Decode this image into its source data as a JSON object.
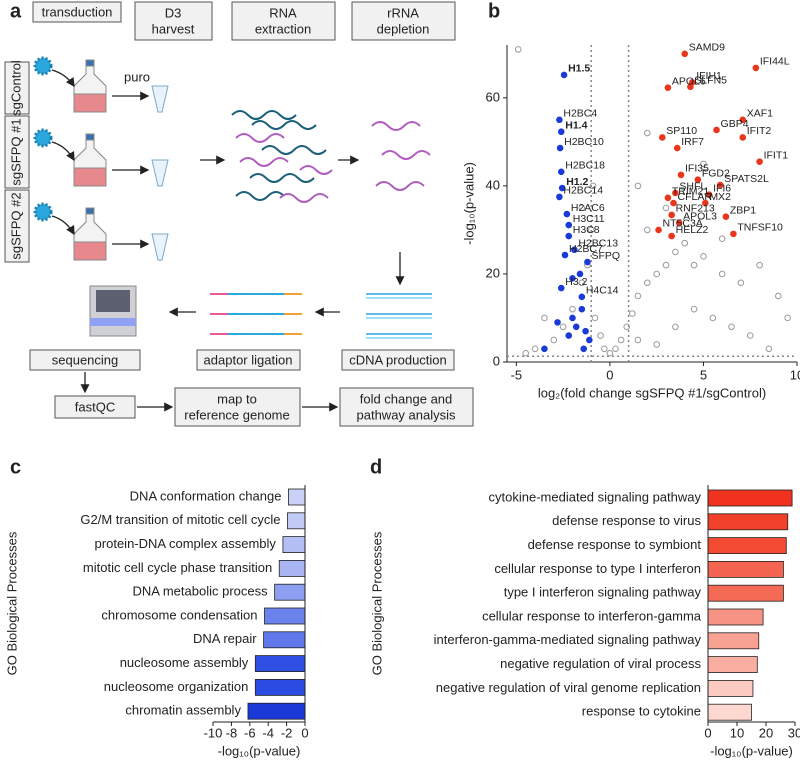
{
  "diagram": {
    "panel_labels": [
      "a",
      "b",
      "c",
      "d"
    ],
    "steps": [
      [
        "transduction"
      ],
      [
        "D3",
        "harvest"
      ],
      [
        "RNA",
        "extraction"
      ],
      [
        "rRNA",
        "depletion"
      ]
    ],
    "conditions": [
      "sgControl",
      "sgSFPQ #1",
      "sgSFPQ #2"
    ],
    "selection": "puro",
    "pipeline": [
      [
        "sequencing"
      ],
      [
        "adaptor ligation"
      ],
      [
        "cDNA production"
      ],
      [
        "fastQC"
      ],
      [
        "map to",
        "reference genome"
      ],
      [
        "fold change and",
        "pathway analysis"
      ]
    ]
  },
  "chart_data": [
    {
      "type": "scatter",
      "x_label": "log₂(fold change sgSFPQ #1/sgControl)",
      "y_label": "-log₁₀(p-value)",
      "xlim": [
        -5.5,
        10
      ],
      "ylim": [
        0,
        72
      ],
      "xticks": [
        -5,
        0,
        5,
        10
      ],
      "yticks": [
        0,
        20,
        40,
        60
      ],
      "thresholds": {
        "x": [
          -1,
          1
        ],
        "y": 1.3
      },
      "groups": [
        {
          "color": "#9a9a9a",
          "filled": false,
          "x": [
            -4.9,
            -3,
            -2.5,
            -2,
            -1.5,
            -1.2,
            -0.8,
            -0.5,
            -0.3,
            0,
            0.3,
            0.6,
            0.9,
            1.2,
            1.5,
            2,
            2.5,
            3,
            3.5,
            4,
            5,
            6,
            7,
            8,
            9,
            9.5,
            1.5,
            2.5,
            3.5,
            4.5,
            5.5,
            6.5,
            7.5,
            -4,
            -3.5,
            -1,
            -1.5,
            -0.9,
            2,
            3,
            4.5,
            6,
            2,
            5,
            1.5,
            -4.5,
            8.5
          ],
          "y": [
            71,
            5,
            8,
            12,
            18,
            22,
            10,
            6,
            3,
            2,
            3,
            5,
            8,
            11,
            15,
            18,
            20,
            22,
            25,
            27,
            24,
            20,
            18,
            22,
            15,
            10,
            5,
            4,
            8,
            12,
            10,
            8,
            6,
            3,
            10,
            30,
            35,
            40,
            30,
            35,
            22,
            28,
            52,
            45,
            40,
            2,
            3
          ]
        },
        {
          "color": "#1a3ad8",
          "filled": true,
          "x": [
            -1.5,
            -2,
            -1.8,
            -2.2,
            -1.3,
            -2.8,
            -1.6,
            -2,
            -1.1,
            -3.5,
            -1.4
          ],
          "y": [
            12,
            10,
            8,
            6,
            7,
            9,
            20,
            19,
            5,
            3,
            3
          ]
        },
        {
          "color": "#1a3ad8",
          "filled": true,
          "label_color": "#1a3ad8",
          "label_bold": true,
          "labels": [
            "H1.5",
            "H1.4",
            "H1.2"
          ],
          "x": [
            -2.45,
            -2.6,
            -2.55
          ],
          "y": [
            65.2,
            52.3,
            39.5
          ]
        },
        {
          "color": "#1a3ad8",
          "filled": true,
          "label_color": "#555555",
          "label_bold": false,
          "labels": [
            "H2BC4",
            "H2BC10",
            "H2BC18",
            "H2BC14",
            "H2AC6",
            "H3C11",
            "H3C8",
            "H2BC13",
            "H2BC7",
            "H3.2",
            "H4C14"
          ],
          "x": [
            -2.7,
            -2.66,
            -2.6,
            -2.7,
            -2.3,
            -2.2,
            -2.2,
            -1.9,
            -2.4,
            -2.6,
            -1.5
          ],
          "y": [
            55,
            48.6,
            43.2,
            37.5,
            33.6,
            31.1,
            28.6,
            25.5,
            24.3,
            16.8,
            14.8
          ]
        },
        {
          "color": "#1a3ad8",
          "filled": true,
          "label_color": "#2bbfc0",
          "label_bold": false,
          "labels": [
            "SFPQ"
          ],
          "x": [
            -1.2
          ],
          "y": [
            22.7
          ]
        },
        {
          "color": "#e8361c",
          "filled": true,
          "label_color": "#e8361c",
          "label_bold": false,
          "labels": [
            "SAMD9",
            "IFI44L",
            "IFIH1",
            "SLFN5",
            "APOL6",
            "XAF1",
            "GBP4",
            "IFIT2",
            "SP110",
            "IRF7",
            "IFIT1",
            "FGD2",
            "IFI35",
            "SPATS2L",
            "SHFL",
            "IFI6",
            "TRIM21",
            "CFLAR",
            "MX2",
            "RNF213",
            "ZBP1",
            "APOL3",
            "NT5C3A",
            "HELZ2",
            "TNFSF10"
          ],
          "x": [
            4.0,
            7.8,
            4.4,
            4.3,
            3.1,
            7.1,
            5.7,
            7.1,
            2.8,
            3.6,
            8.0,
            4.7,
            3.8,
            5.9,
            3.5,
            5.3,
            3.1,
            3.4,
            5.1,
            3.3,
            6.2,
            3.7,
            2.6,
            3.3,
            6.6
          ],
          "y": [
            70,
            66.8,
            63.5,
            62.5,
            62.3,
            55,
            52.7,
            51,
            51,
            48.6,
            45.5,
            41.4,
            42.5,
            40.2,
            38.4,
            38,
            37.3,
            36.1,
            36.1,
            33.4,
            33,
            31.6,
            30,
            28.6,
            29.1
          ]
        }
      ]
    },
    {
      "type": "bar",
      "orientation": "horizontal",
      "y_label": "GO Biological Processes",
      "x_label": "-log₁₀(p-value)",
      "categories": [
        "DNA conformation change",
        "G2/M transition of mitotic cell cycle",
        "protein-DNA complex assembly",
        "mitotic cell cycle phase transition",
        "DNA metabolic process",
        "chromosome condensation",
        "DNA repair",
        "nucleosome assembly",
        "nucleosome organization",
        "chromatin assembly"
      ],
      "values": [
        -1.8,
        -1.9,
        -2.4,
        -2.8,
        -3.3,
        -4.4,
        -4.5,
        -5.4,
        -5.4,
        -6.2
      ],
      "colors": [
        "#c9d1f7",
        "#c2cbf6",
        "#b3bff4",
        "#a9b6f3",
        "#8d9ff0",
        "#6b83ec",
        "#6078eb",
        "#2f50e2",
        "#2b4ce2",
        "#1a3ad8"
      ],
      "xlim": [
        -10,
        0
      ],
      "xticks": [
        -10,
        -8,
        -6,
        -4,
        -2,
        0
      ]
    },
    {
      "type": "bar",
      "orientation": "horizontal",
      "y_label": "GO Biological Processes",
      "x_label": "-log₁₀(p-value)",
      "categories": [
        "cytokine-mediated signaling pathway",
        "defense response to virus",
        "defense response to symbiont",
        "cellular response to type I interferon",
        "type I interferon signaling pathway",
        "cellular response to interferon-gamma",
        "interferon-gamma-mediated signaling pathway",
        "negative regulation of viral process",
        "negative regulation of viral genome replication",
        "response to cytokine"
      ],
      "values": [
        29,
        27.5,
        27,
        26,
        26,
        19,
        17.5,
        17,
        15.5,
        15
      ],
      "colors": [
        "#f0321e",
        "#f2412a",
        "#f34a32",
        "#f46450",
        "#f56a55",
        "#f79384",
        "#f8a294",
        "#f9aea1",
        "#fbcac0",
        "#fcd8d0"
      ],
      "xlim": [
        0,
        30
      ],
      "xticks": [
        0,
        10,
        20,
        30
      ]
    }
  ]
}
